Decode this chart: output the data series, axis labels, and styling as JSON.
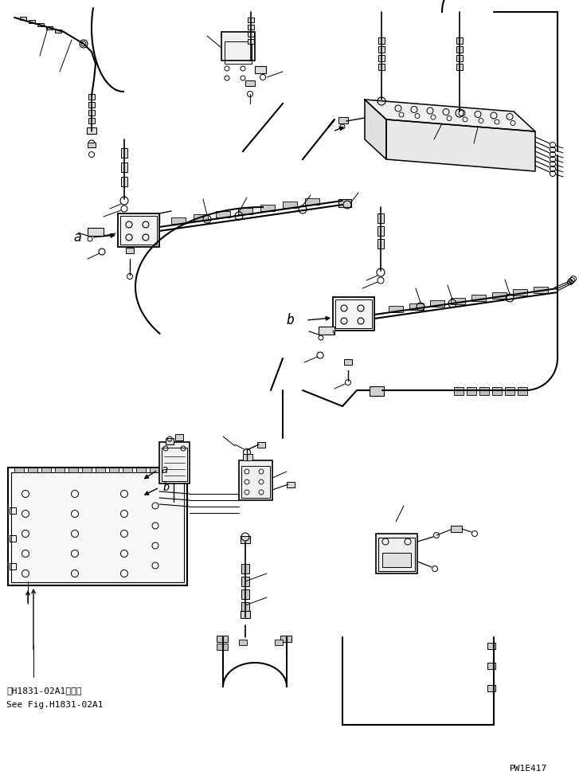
{
  "bg_color": "#ffffff",
  "line_color": "#000000",
  "page_id": "PW1E417",
  "ref_text_line1": "第H1831-02A1図参照",
  "ref_text_line2": "See Fig.H1831-02A1",
  "label_a": "a",
  "label_b": "b",
  "fig_width": 7.27,
  "fig_height": 9.73,
  "dpi": 100
}
